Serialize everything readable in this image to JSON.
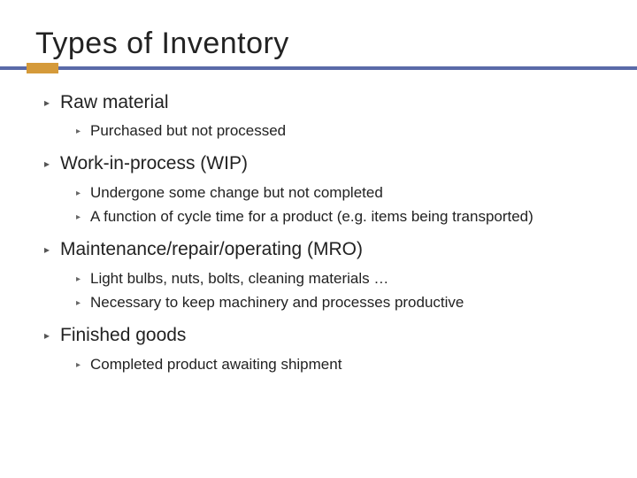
{
  "title": "Types of Inventory",
  "accent_color": "#d59a3a",
  "underline_color": "#5a6aa8",
  "bullet_glyph": "▸",
  "items": [
    {
      "label": "Raw material",
      "subs": [
        "Purchased but not processed"
      ]
    },
    {
      "label": "Work-in-process (WIP)",
      "subs": [
        "Undergone some change but not completed",
        "A function of cycle time for a product (e.g. items being transported)"
      ]
    },
    {
      "label": "Maintenance/repair/operating (MRO)",
      "subs": [
        "Light bulbs, nuts, bolts, cleaning materials …",
        "Necessary to keep machinery and processes productive"
      ]
    },
    {
      "label": "Finished goods",
      "subs": [
        "Completed product awaiting shipment"
      ]
    }
  ]
}
